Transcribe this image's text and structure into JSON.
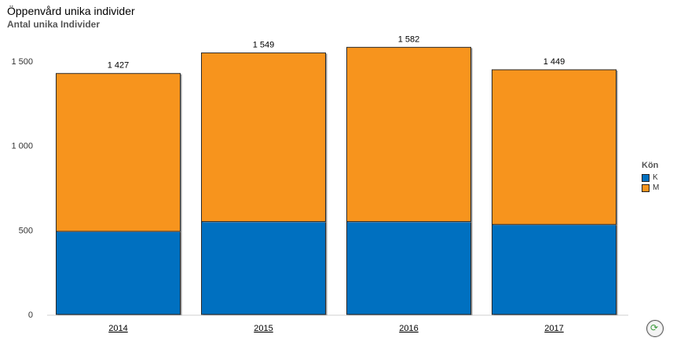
{
  "header": {
    "title": "Öppenvård unika individer",
    "subtitle": "Antal unika Individer"
  },
  "legend": {
    "title": "Kön",
    "items": [
      {
        "label": "K",
        "color": "#0070C0"
      },
      {
        "label": "M",
        "color": "#F7941D"
      }
    ]
  },
  "chart_data": {
    "type": "bar",
    "stacked": true,
    "categories": [
      "2014",
      "2015",
      "2016",
      "2017"
    ],
    "series": [
      {
        "name": "K",
        "color": "#0070C0",
        "values": [
          492,
          550,
          550,
          533
        ]
      },
      {
        "name": "M",
        "color": "#F7941D",
        "values": [
          935,
          999,
          1032,
          916
        ]
      }
    ],
    "totals": [
      "1 427",
      "1 549",
      "1 582",
      "1 449"
    ],
    "y_ticks": [
      {
        "value": 0,
        "label": "0"
      },
      {
        "value": 500,
        "label": "500"
      },
      {
        "value": 1000,
        "label": "1 000"
      },
      {
        "value": 1500,
        "label": "1 500"
      }
    ],
    "ylim": [
      0,
      1800
    ],
    "grid": false,
    "legend_position": "right"
  },
  "icons": {
    "loading": "loading-spinner-icon"
  }
}
